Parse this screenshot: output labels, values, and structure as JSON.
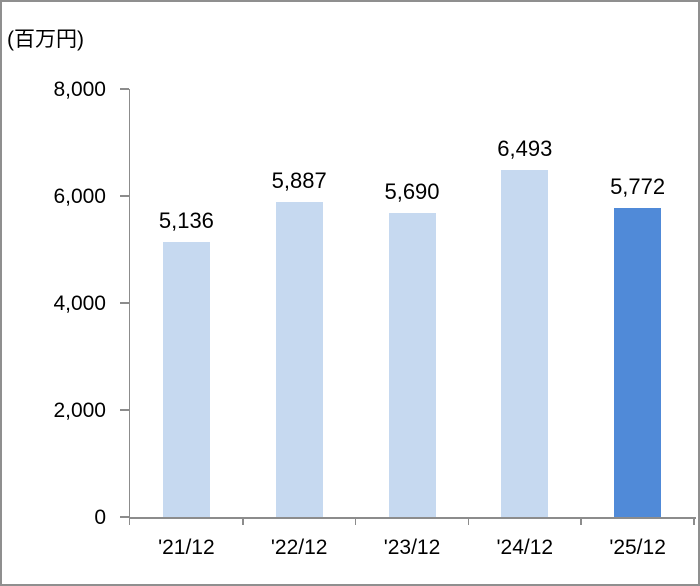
{
  "frame": {
    "background": "#FFFFFF",
    "border_color": "#8F8F8F"
  },
  "unit_label": "(百万円)",
  "chart_data": {
    "type": "bar",
    "title": "",
    "xlabel": "",
    "ylabel": "(百万円)",
    "categories": [
      "'21/12",
      "'22/12",
      "'23/12",
      "'24/12",
      "'25/12"
    ],
    "values": [
      5136,
      5887,
      5690,
      6493,
      5772
    ],
    "value_labels": [
      "5,136",
      "5,887",
      "5,690",
      "6,493",
      "5,772"
    ],
    "ylim": [
      0,
      8000
    ],
    "ytick_step": 2000,
    "yticks": [
      0,
      2000,
      4000,
      6000,
      8000
    ],
    "ytick_labels": [
      "0",
      "2,000",
      "4,000",
      "6,000",
      "8,000"
    ],
    "grid": false,
    "legend": false,
    "bar_color_default": "#C6D9F0",
    "bar_color_highlight": "#508AD8",
    "highlight_index": 4,
    "axis_color": "#8C8C8C",
    "label_color": "#000000"
  }
}
